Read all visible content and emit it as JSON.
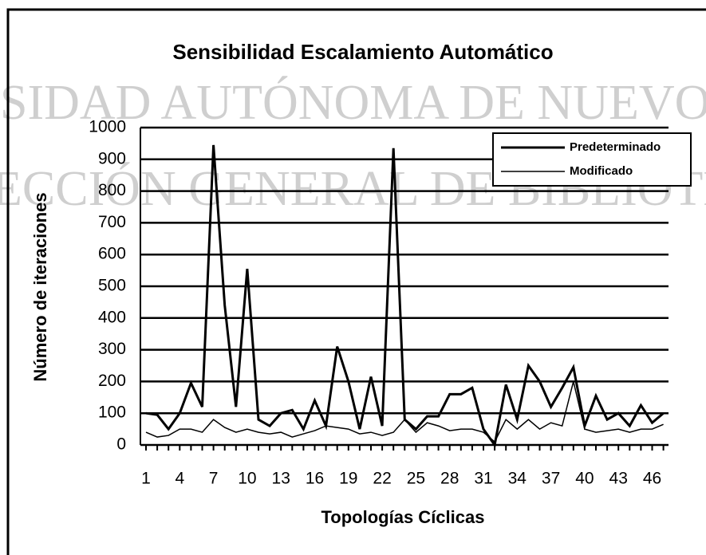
{
  "chart_data": {
    "type": "line",
    "title": "Sensibilidad Escalamiento Automático",
    "x_label": "Topologías Cíclicas",
    "y_label": "Número de iteraciones",
    "watermark": [
      "SIDAD AUTÓNOMA DE NUEVO L",
      "ECCIÓN GENERAL DE BIBLIOTECAS"
    ],
    "categories": [
      "1",
      null,
      null,
      "4",
      null,
      null,
      "7",
      null,
      null,
      "10",
      null,
      null,
      "13",
      null,
      null,
      "16",
      null,
      null,
      "19",
      null,
      null,
      "22",
      null,
      null,
      "25",
      null,
      null,
      "28",
      null,
      null,
      "31",
      null,
      null,
      "34",
      null,
      null,
      "37",
      null,
      null,
      "40",
      null,
      null,
      "43",
      null,
      null,
      "46",
      null
    ],
    "series": [
      {
        "name": "Predeterminado",
        "color": "#000000",
        "values": [
          100,
          95,
          50,
          100,
          195,
          120,
          945,
          440,
          120,
          555,
          80,
          60,
          100,
          110,
          50,
          140,
          60,
          310,
          200,
          50,
          215,
          60,
          935,
          80,
          50,
          90,
          90,
          160,
          160,
          180,
          50,
          0,
          190,
          80,
          250,
          200,
          120,
          180,
          245,
          60,
          155,
          80,
          100,
          60,
          125,
          70,
          100
        ]
      },
      {
        "name": "Modificado",
        "color": "#000000",
        "values": [
          40,
          25,
          30,
          50,
          50,
          40,
          80,
          55,
          40,
          50,
          40,
          35,
          40,
          25,
          35,
          45,
          60,
          55,
          50,
          35,
          40,
          30,
          40,
          80,
          40,
          70,
          60,
          45,
          50,
          50,
          40,
          10,
          80,
          50,
          80,
          50,
          70,
          60,
          200,
          50,
          40,
          45,
          50,
          40,
          50,
          50,
          65
        ]
      }
    ],
    "ylim": [
      0,
      1000
    ],
    "yticks": [
      0,
      100,
      200,
      300,
      400,
      500,
      600,
      700,
      800,
      900,
      1000
    ],
    "grid": true,
    "legend": "top-right"
  }
}
